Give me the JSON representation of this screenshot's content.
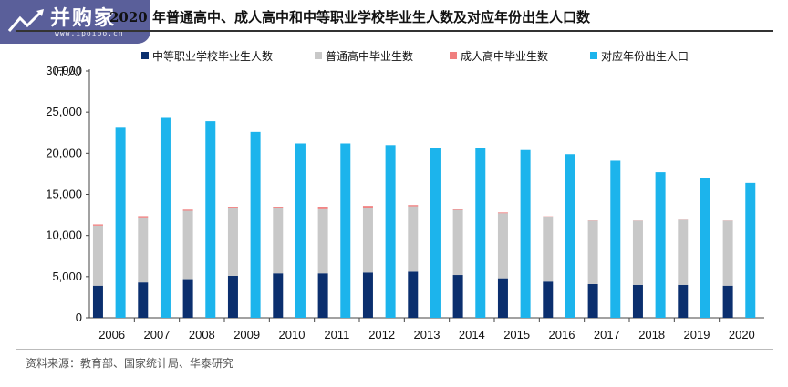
{
  "header": {
    "title": "2020 年普通高中、成人高中和中等职业学校毕业生人数及对应年份出生人口数"
  },
  "watermark": {
    "name": "并购家",
    "url": "www.ipoipo.cn"
  },
  "footer": {
    "source": "资料来源：教育部、国家统计局、华泰研究"
  },
  "colors": {
    "vocational": "#0b2f6e",
    "general_high": "#c8c8c8",
    "adult_high": "#f07f7f",
    "births": "#1cb4ec"
  },
  "chart_data": {
    "type": "bar",
    "stacked_group": [
      "中等职业学校毕业生人数",
      "普通高中毕业生数",
      "成人高中毕业生数"
    ],
    "categories": [
      "2006",
      "2007",
      "2008",
      "2009",
      "2010",
      "2011",
      "2012",
      "2013",
      "2014",
      "2015",
      "2016",
      "2017",
      "2018",
      "2019",
      "2020"
    ],
    "series": [
      {
        "name": "中等职业学校毕业生人数",
        "color": "#0b2f6e",
        "values": [
          3900,
          4300,
          4700,
          5100,
          5400,
          5400,
          5500,
          5600,
          5200,
          4800,
          4400,
          4100,
          4000,
          4000,
          3900
        ]
      },
      {
        "name": "普通高中毕业生数",
        "color": "#c8c8c8",
        "values": [
          7300,
          7900,
          8300,
          8300,
          8000,
          7900,
          7900,
          7950,
          7900,
          7900,
          7900,
          7700,
          7800,
          7900,
          7900
        ]
      },
      {
        "name": "成人高中毕业生数",
        "color": "#f07f7f",
        "values": [
          150,
          150,
          140,
          100,
          100,
          200,
          200,
          150,
          120,
          100,
          30,
          30,
          20,
          20,
          20
        ]
      },
      {
        "name": "对应年份出生人口",
        "color": "#1cb4ec",
        "values": [
          23100,
          24300,
          23900,
          22600,
          21200,
          21200,
          21000,
          20600,
          20600,
          20400,
          19900,
          19100,
          17700,
          17000,
          16400
        ]
      }
    ],
    "ylim": [
      0,
      30000
    ],
    "yticks": [
      "0",
      "5,000",
      "10,000",
      "15,000",
      "20,000",
      "25,000",
      "30,000"
    ],
    "ytick_values": [
      0,
      5000,
      10000,
      15000,
      20000,
      25000,
      30000
    ],
    "yunit": "（千人）",
    "legend_position": "top"
  }
}
